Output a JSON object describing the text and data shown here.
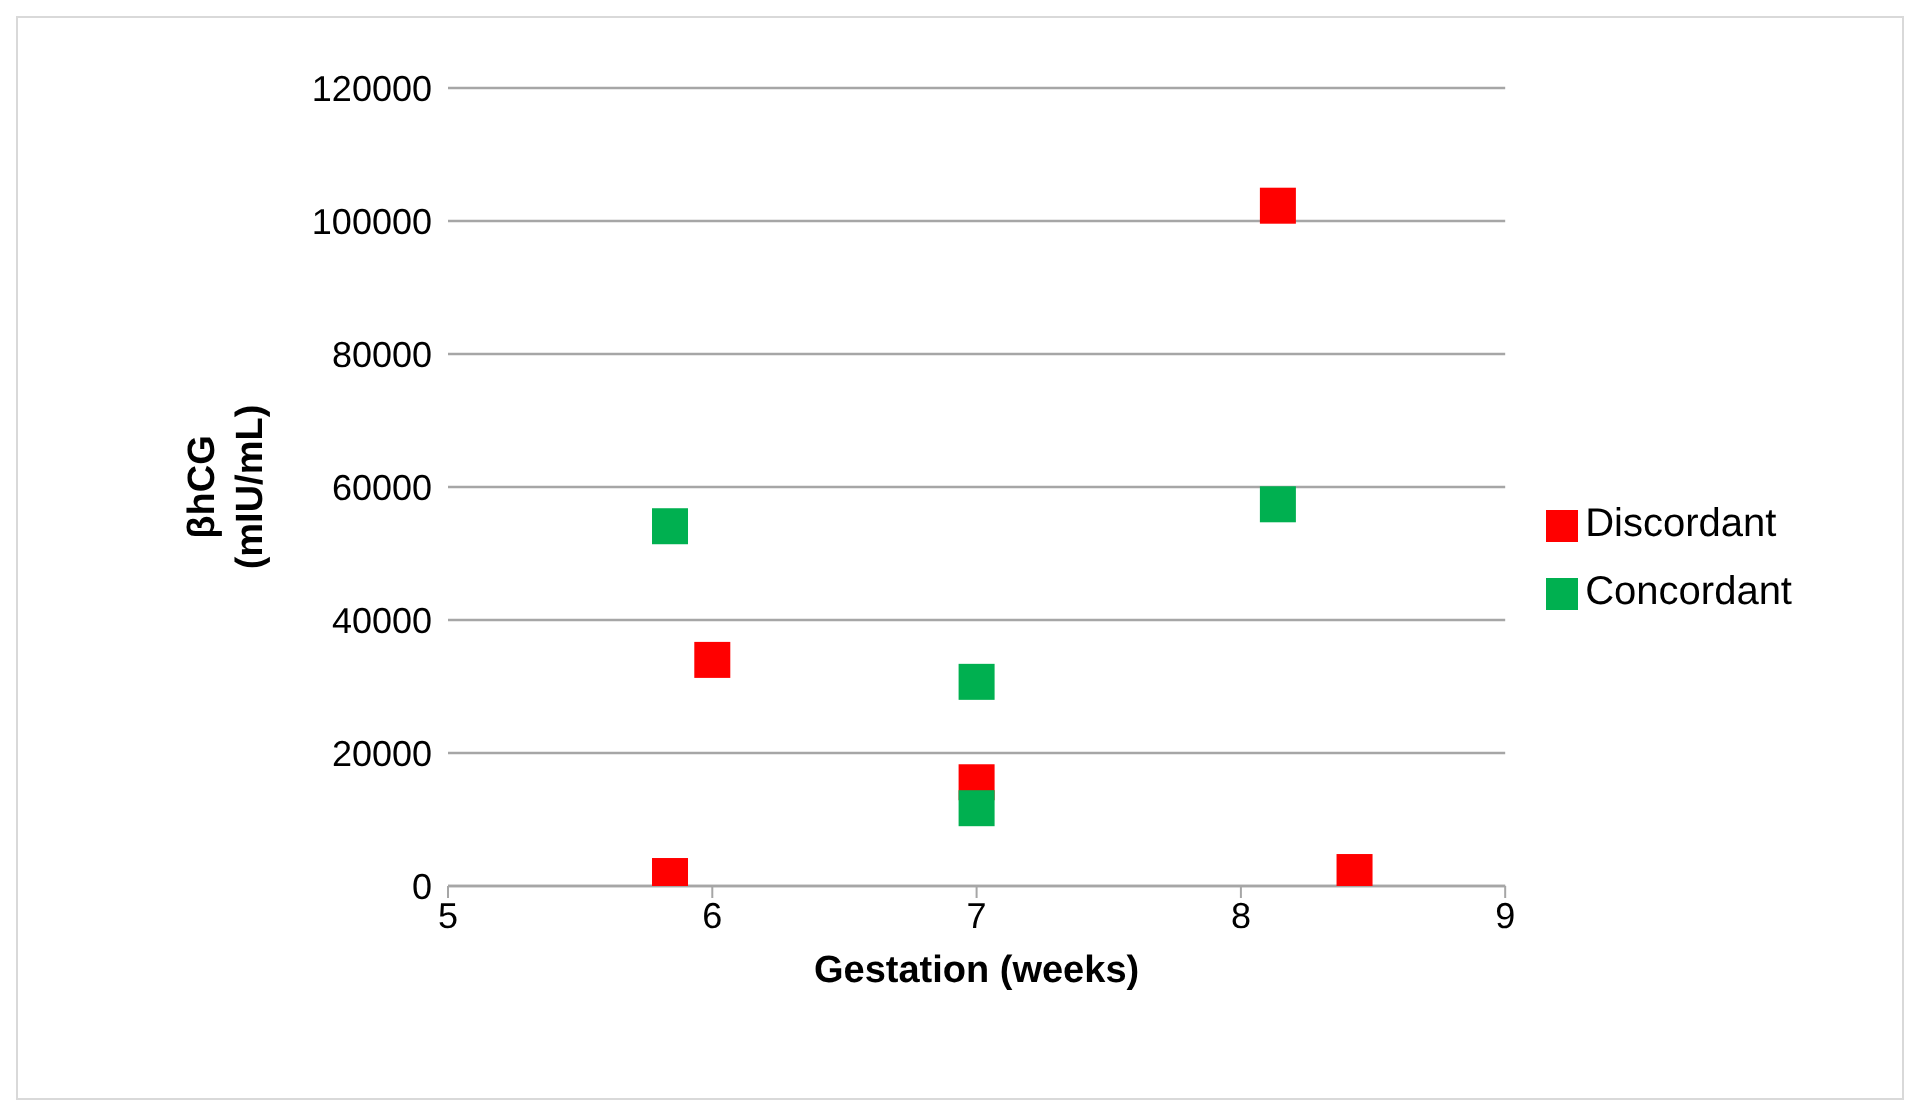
{
  "chart_data": {
    "type": "scatter",
    "xlabel": "Gestation (weeks)",
    "ylabel": "βhCG (mIU/mL)",
    "xlim": [
      5,
      9
    ],
    "xticks": [
      5,
      6,
      7,
      8,
      9
    ],
    "ylim": [
      0,
      120000
    ],
    "yticks": [
      0,
      20000,
      40000,
      60000,
      80000,
      100000,
      120000
    ],
    "grid": "y",
    "legend": "right",
    "marker": "square",
    "series": [
      {
        "name": "Discordant",
        "color": "#ff0000",
        "x": [
          5.84,
          6.0,
          7.0,
          8.14,
          8.43
        ],
        "values": [
          1500,
          34000,
          15600,
          102300,
          2100
        ]
      },
      {
        "name": "Concordant",
        "color": "#00b050",
        "x": [
          5.84,
          7.0,
          7.0,
          8.14
        ],
        "values": [
          54100,
          30700,
          11700,
          57400
        ]
      }
    ]
  }
}
